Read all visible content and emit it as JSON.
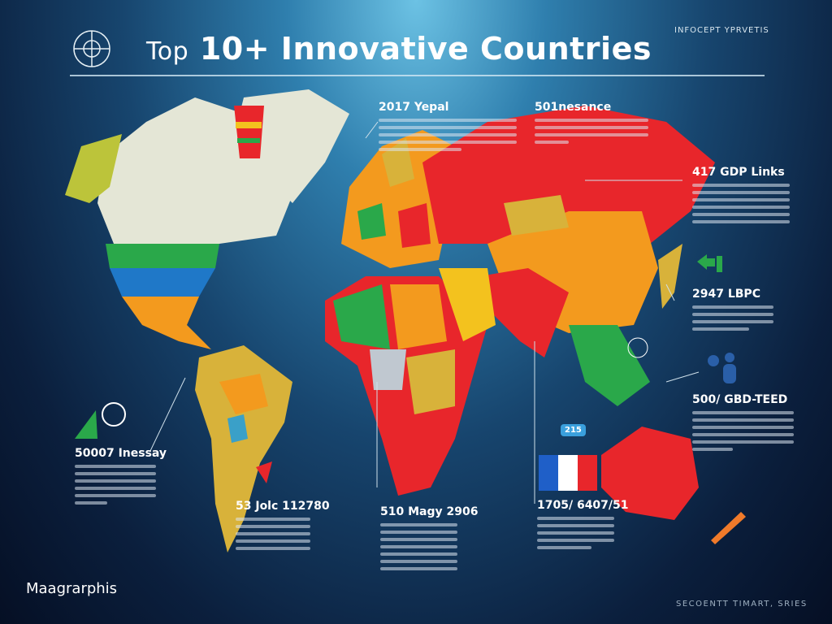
{
  "header": {
    "title_prefix": "Top",
    "title_main": "10+ Innovative Countries",
    "corner_label": "INFOCEPT YPRVETIS"
  },
  "cards": [
    {
      "heading": "2017 Yepal",
      "lines": 5
    },
    {
      "heading": "501nesance",
      "lines": 4
    },
    {
      "heading": "417 GDP Links",
      "lines": 6
    },
    {
      "heading": "2947 LBPC",
      "lines": 4
    },
    {
      "heading": "500/ GBD-TEED",
      "lines": 6
    },
    {
      "heading": "50007 Inessay",
      "lines": 6
    },
    {
      "heading": "53 Jolc 112780",
      "lines": 5
    },
    {
      "heading": "510 Magy 2906",
      "lines": 7
    },
    {
      "heading": "1705/ 6407/51",
      "lines": 5
    }
  ],
  "badge": "215",
  "footer": {
    "brand": "Maagrarphis",
    "right_label": "SECOENTT TIMART, SRIES"
  },
  "colors": {
    "red": "#e8262b",
    "orange": "#f39a1e",
    "yellow": "#d8b23a",
    "green": "#2aa84a",
    "blue": "#1f78c8",
    "land_light": "#e4e6d6"
  }
}
